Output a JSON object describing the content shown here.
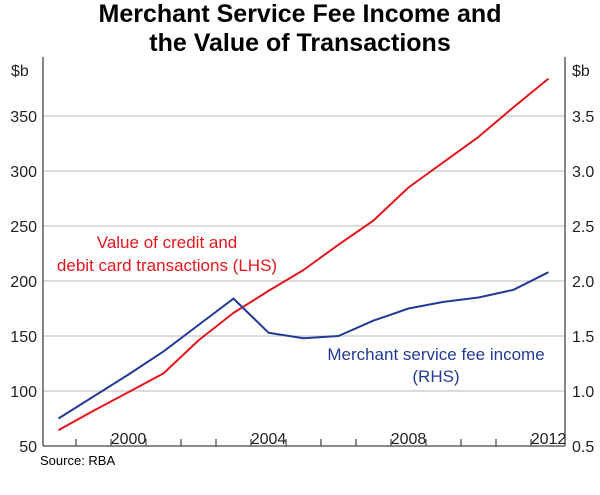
{
  "chart_data": {
    "type": "line",
    "title": [
      "Merchant Service Fee Income and",
      "the Value of Transactions"
    ],
    "left_axis": {
      "unit": "$b",
      "ylim": [
        50,
        400
      ],
      "ticks": [
        50,
        100,
        150,
        200,
        250,
        300,
        350
      ],
      "tick_labels": [
        "50",
        "100",
        "150",
        "200",
        "250",
        "300",
        "350"
      ]
    },
    "right_axis": {
      "unit": "$b",
      "ylim": [
        0.5,
        4.0
      ],
      "ticks": [
        0.5,
        1.0,
        1.5,
        2.0,
        2.5,
        3.0,
        3.5
      ],
      "tick_labels": [
        "0.5",
        "1.0",
        "1.5",
        "2.0",
        "2.5",
        "3.0",
        "3.5"
      ]
    },
    "x_axis": {
      "xlim": [
        1998,
        2013
      ],
      "tick_labels": [
        "2000",
        "2004",
        "2008",
        "2012"
      ],
      "label_years": [
        2000,
        2004,
        2008,
        2012
      ]
    },
    "grid": true,
    "x": [
      1998,
      1999,
      2000,
      2001,
      2002,
      2003,
      2004,
      2005,
      2006,
      2007,
      2008,
      2009,
      2010,
      2011,
      2012
    ],
    "series": [
      {
        "name": "Value of credit and debit card transactions (LHS)",
        "label_lines": [
          "Value of credit and",
          "debit card transactions (LHS)"
        ],
        "axis": "left",
        "color": "#e3161e",
        "values": [
          64.5,
          82,
          99,
          116,
          146,
          171,
          191,
          210,
          233,
          255,
          285,
          308,
          331,
          358,
          384
        ]
      },
      {
        "name": "Merchant service fee income (RHS)",
        "label_lines": [
          "Merchant service fee income",
          "(RHS)"
        ],
        "axis": "right",
        "color": "#233b95",
        "values": [
          0.75,
          0.95,
          1.15,
          1.36,
          1.6,
          1.84,
          1.53,
          1.48,
          1.5,
          1.64,
          1.75,
          1.81,
          1.85,
          1.92,
          2.08
        ]
      }
    ],
    "source": "Source: RBA"
  }
}
